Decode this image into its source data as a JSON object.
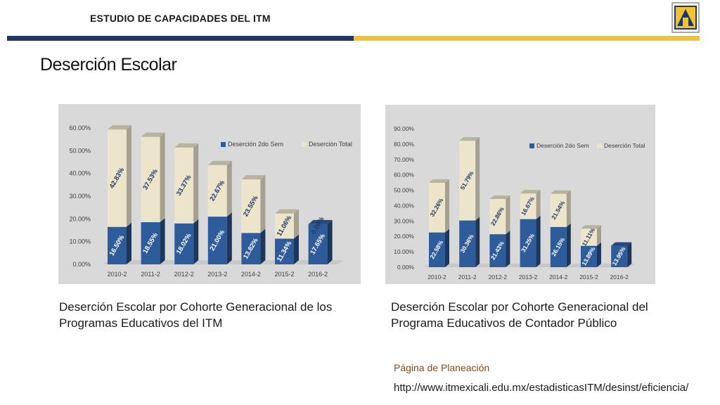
{
  "header": {
    "title": "ESTUDIO DE CAPACIDADES DEL ITM"
  },
  "page_title": "Deserción Escolar",
  "colors": {
    "blue": "#2e5b9a",
    "beige": "#ece5cc",
    "band_blue": "#1f3864",
    "band_gold": "#f2c230"
  },
  "chart_data": [
    {
      "type": "bar",
      "stacked": true,
      "categories": [
        "2010-2",
        "2011-2",
        "2012-2",
        "2013-2",
        "2014-2",
        "2015-2",
        "2016-2"
      ],
      "series": [
        {
          "name": "Deserción 2do Sem",
          "values": [
            16.5,
            18.55,
            18.02,
            21.0,
            13.82,
            11.34,
            17.65
          ],
          "labels": [
            "16.50%",
            "18.55%",
            "18.02%",
            "21.00%",
            "13.82%",
            "11.34%",
            "17.65%"
          ]
        },
        {
          "name": "Deserción  Total",
          "values": [
            42.83,
            37.53,
            33.37,
            22.67,
            23.55,
            11.06,
            0.0
          ],
          "labels": [
            "42.83%",
            "37.53%",
            "33.37%",
            "22.67%",
            "23.55%",
            "11.06%",
            "0.00%"
          ]
        }
      ],
      "yticks": [
        "0.00%",
        "10.00%",
        "20.00%",
        "30.00%",
        "40.00%",
        "50.00%",
        "60.00%"
      ],
      "ylim": [
        0,
        60
      ],
      "legend": "top-right"
    },
    {
      "type": "bar",
      "stacked": true,
      "categories": [
        "2010-2",
        "2011-2",
        "2012-2",
        "2013-2",
        "2014-2",
        "2015-2",
        "2016-2"
      ],
      "series": [
        {
          "name": "Deserción 2do Sem",
          "values": [
            22.58,
            30.36,
            21.43,
            31.25,
            26.15,
            13.89,
            13.95
          ],
          "labels": [
            "22.58%",
            "30.36%",
            "21.43%",
            "31.25%",
            "26.15%",
            "13.89%",
            "13.95%"
          ]
        },
        {
          "name": "Deserción  Total",
          "values": [
            32.26,
            51.79,
            22.86,
            16.67,
            21.54,
            11.11,
            0.0
          ],
          "labels": [
            "32.26%",
            "51.79%",
            "22.86%",
            "16.67%",
            "21.54%",
            "11.11%",
            ""
          ]
        }
      ],
      "yticks": [
        "0.00%",
        "10.00%",
        "20.00%",
        "30.00%",
        "40.00%",
        "50.00%",
        "60.00%",
        "70.00%",
        "80.00%",
        "90.00%"
      ],
      "ylim": [
        0,
        90
      ],
      "legend": "top-right"
    }
  ],
  "captions": {
    "left": "Deserción Escolar por Cohorte Generacional de los Programas Educativos del ITM",
    "right": "Deserción Escolar por Cohorte Generacional del Programa Educativos de Contador Público"
  },
  "links": {
    "title": "Página de Planeación",
    "url": "http://www.itmexicali.edu.mx/estadisticasITM/desinst/eficiencia/"
  }
}
